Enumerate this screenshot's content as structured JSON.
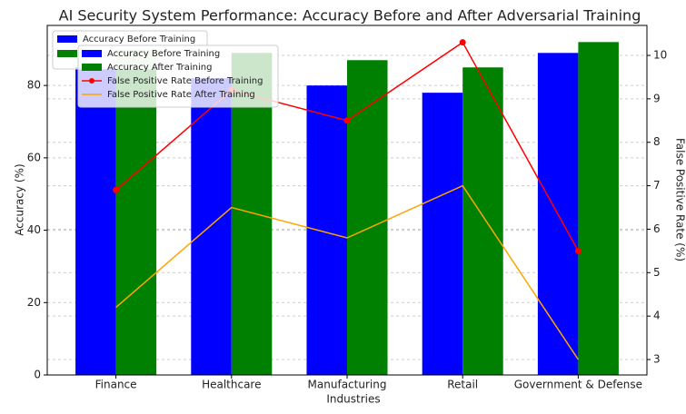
{
  "chart_data": {
    "type": "bar_line",
    "title": "AI Security System Performance: Accuracy Before and After Adversarial Training",
    "x_label": "Industries",
    "y_label": "Accuracy (%)",
    "y2_label": "False Positive Rate (%)",
    "categories": [
      "Finance",
      "Healthcare",
      "Manufacturing",
      "Retail",
      "Government & Defense"
    ],
    "series": [
      {
        "name": "Accuracy Before Training",
        "color": "#0000ff",
        "kind": "bar",
        "values": [
          85,
          82,
          80,
          78,
          89
        ]
      },
      {
        "name": "Accuracy After Training",
        "color": "#008000",
        "kind": "bar",
        "values": [
          90,
          89,
          87,
          85,
          92
        ]
      },
      {
        "name": "False Positive Rate Before Training",
        "color": "#ff0000",
        "kind": "line",
        "axis": "y2",
        "marker": true,
        "values": [
          6.9,
          9.2,
          8.5,
          10.3,
          5.5
        ]
      },
      {
        "name": "False Positive Rate After Training",
        "color": "#ffa500",
        "kind": "line",
        "axis": "y2",
        "marker": false,
        "values": [
          4.2,
          6.5,
          5.8,
          7.0,
          3.0
        ]
      }
    ],
    "overlapped_legend": {
      "label": "Accuracy Before Training",
      "color": "#0000ff"
    },
    "ylim": [
      0,
      96.6
    ],
    "yticks": [
      0,
      20,
      40,
      60,
      80
    ],
    "y2lim": [
      2.645,
      10.69
    ],
    "y2ticks": [
      3,
      4,
      5,
      6,
      7,
      8,
      9,
      10
    ],
    "grid": true
  }
}
